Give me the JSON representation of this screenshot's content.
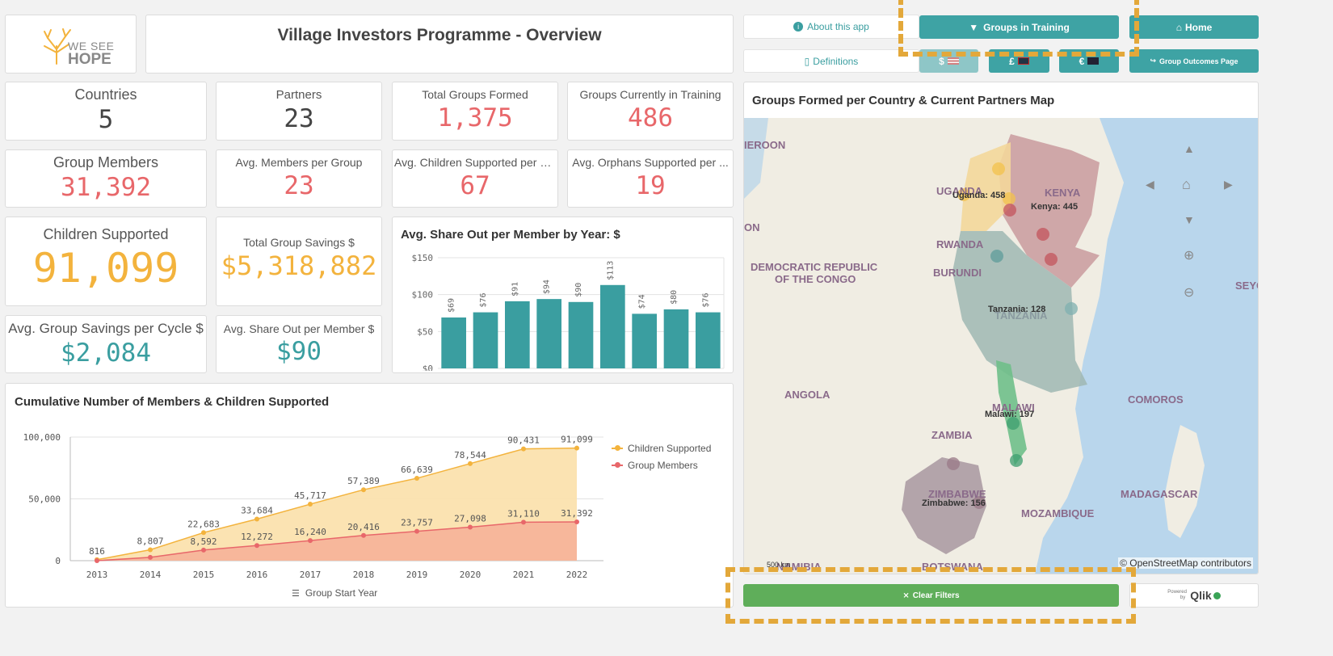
{
  "header": {
    "title": "Village Investors Programme - Overview",
    "logo_line1": "WE SEE",
    "logo_line2": "HOPE"
  },
  "toolbar": {
    "about": "About this app",
    "definitions": "Definitions",
    "groups_training": "Groups in Training",
    "home": "Home",
    "currency_usd": "$",
    "currency_gbp": "£",
    "currency_eur": "€",
    "group_outcomes": "Group Outcomes Page",
    "clear_filters": "Clear Filters",
    "powered_by": "Powered by",
    "qlik": "Qlik"
  },
  "kpis": {
    "countries": {
      "label": "Countries",
      "value": "5"
    },
    "partners": {
      "label": "Partners",
      "value": "23"
    },
    "total_groups": {
      "label": "Total Groups Formed",
      "value": "1,375"
    },
    "groups_training": {
      "label": "Groups Currently in Training",
      "value": "486"
    },
    "group_members": {
      "label": "Group Members",
      "value": "31,392"
    },
    "avg_members": {
      "label": "Avg. Members per Group",
      "value": "23"
    },
    "avg_children": {
      "label": "Avg. Children Supported per G...",
      "value": "67"
    },
    "avg_orphans": {
      "label": "Avg. Orphans Supported per ...",
      "value": "19"
    },
    "children_supported": {
      "label": "Children Supported",
      "value": "91,099"
    },
    "total_savings": {
      "label": "Total Group Savings $",
      "value": "$5,318,882"
    },
    "avg_savings_cycle": {
      "label": "Avg. Group Savings per Cycle $",
      "value": "$2,084"
    },
    "avg_shareout": {
      "label": "Avg. Share Out per Member $",
      "value": "$90"
    }
  },
  "map": {
    "title": "Groups Formed per Country & Current Partners Map",
    "attribution": "© OpenStreetMap contributors",
    "scale": "500 km",
    "labels": {
      "kenya_country": "KENYA",
      "kenya": "Kenya: 445",
      "uganda_country": "UGANDA",
      "uganda": "Uganda: 458",
      "rwanda": "RWANDA",
      "burundi": "BURUNDI",
      "drc_1": "DEMOCRATIC REPUBLIC",
      "drc_2": "OF THE CONGO",
      "tanzania_country": "TANZANIA",
      "tanzania": "Tanzania: 128",
      "malawi_country": "MALAWI",
      "malawi": "Malawi: 197",
      "zambia": "ZAMBIA",
      "angola": "ANGOLA",
      "zimbabwe_country": "ZIMBABWE",
      "zimbabwe": "Zimbabwe: 156",
      "mozambique": "MOZAMBIQUE",
      "madagascar": "MADAGASCAR",
      "comoros": "COMOROS",
      "botswana": "BOTSWANA",
      "namibia": "NAMIBIA",
      "cameroon": "IEROON",
      "gabon": "ON",
      "seychelles": "SEYC"
    }
  },
  "chart_data": [
    {
      "type": "bar",
      "title": "Avg. Share Out per Member by Year: $",
      "categories": [
        "",
        "",
        "",
        "",
        "",
        "",
        "",
        "",
        ""
      ],
      "values": [
        69,
        76,
        91,
        94,
        90,
        113,
        74,
        80,
        76
      ],
      "value_labels": [
        "$69",
        "$76",
        "$91",
        "$94",
        "$90",
        "$113",
        "$74",
        "$80",
        "$76"
      ],
      "y_ticks": [
        "$0",
        "$50",
        "$100",
        "$150"
      ],
      "ylim": [
        0,
        150
      ],
      "color": "#3a9ea0"
    },
    {
      "type": "area",
      "title": "Cumulative Number of Members & Children Supported",
      "xlabel": "Group Start Year",
      "x": [
        "2013",
        "2014",
        "2015",
        "2016",
        "2017",
        "2018",
        "2019",
        "2020",
        "2021",
        "2022"
      ],
      "y_ticks": [
        "0",
        "50,000",
        "100,000"
      ],
      "ylim": [
        0,
        100000
      ],
      "legend_position": "right",
      "series": [
        {
          "name": "Children Supported",
          "color": "#f3b33d",
          "values": [
            816,
            8807,
            22683,
            33684,
            45717,
            57389,
            66639,
            78544,
            90431,
            91099
          ],
          "labels": [
            "816",
            "8,807",
            "22,683",
            "33,684",
            "45,717",
            "57,389",
            "66,639",
            "78,544",
            "90,431",
            "91,099"
          ]
        },
        {
          "name": "Group Members",
          "color": "#e8676a",
          "values": [
            0,
            2700,
            8592,
            12272,
            16240,
            20416,
            23757,
            27098,
            31110,
            31392
          ],
          "labels": [
            "",
            "",
            "8,592",
            "12,272",
            "16,240",
            "20,416",
            "23,757",
            "27,098",
            "31,110",
            "31,392"
          ]
        }
      ]
    }
  ]
}
